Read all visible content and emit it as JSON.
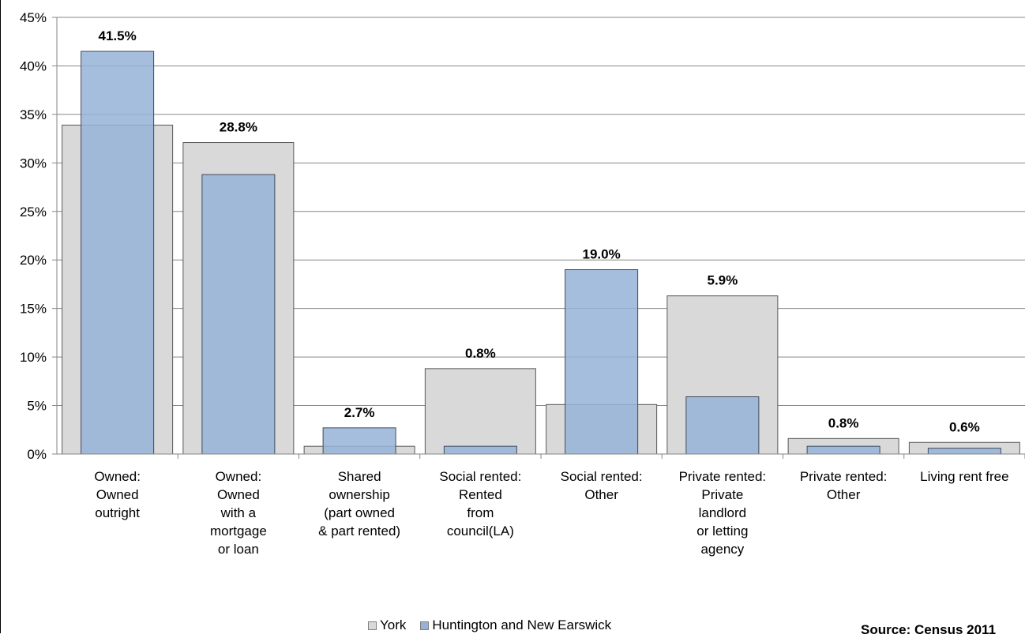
{
  "chart_data": {
    "type": "bar",
    "categories": [
      [
        "Owned:",
        "Owned",
        "outright"
      ],
      [
        "Owned:",
        "Owned",
        "with a",
        "mortgage",
        "or loan"
      ],
      [
        "Shared",
        "ownership",
        "(part owned",
        "& part rented)"
      ],
      [
        "Social rented:",
        "Rented",
        "from",
        "council(LA)"
      ],
      [
        "Social rented:",
        "Other"
      ],
      [
        "Private rented:",
        "Private",
        "landlord",
        "or letting",
        "agency"
      ],
      [
        "Private rented:",
        "Other"
      ],
      [
        "Living rent free"
      ]
    ],
    "series": [
      {
        "name": "York",
        "values": [
          33.9,
          32.1,
          0.8,
          8.8,
          5.1,
          16.3,
          1.6,
          1.2
        ],
        "color": "#d9d9d9"
      },
      {
        "name": "Huntington and New Earswick",
        "values": [
          41.5,
          28.8,
          2.7,
          0.8,
          19.0,
          5.9,
          0.8,
          0.6
        ],
        "color": "#95b3d7"
      }
    ],
    "data_labels": [
      "41.5%",
      "28.8%",
      "2.7%",
      "0.8%",
      "19.0%",
      "5.9%",
      "0.8%",
      "0.6%"
    ],
    "y_ticks": [
      "0%",
      "5%",
      "10%",
      "15%",
      "20%",
      "25%",
      "30%",
      "35%",
      "40%",
      "45%"
    ],
    "ylim": [
      0,
      45
    ],
    "grid": true,
    "legend_position": "bottom",
    "source": "Source: Census 2011"
  }
}
